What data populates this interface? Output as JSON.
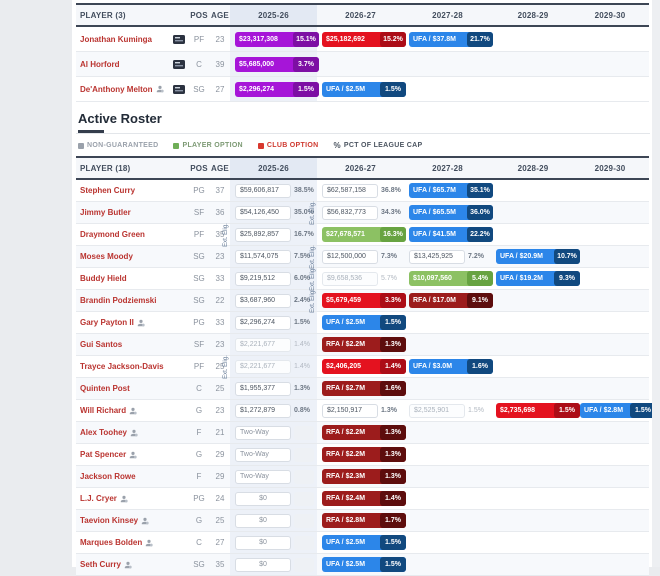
{
  "ext_label": "Ext. Elig.",
  "seasons": [
    "2025-26",
    "2026-27",
    "2027-28",
    "2028-29",
    "2029-30"
  ],
  "pending_table": {
    "player_header": "PLAYER (3)",
    "pos_header": "POS",
    "age_header": "AGE",
    "rows": [
      {
        "name": "Jonathan Kuminga",
        "person_icon": false,
        "contract_icon": true,
        "pos": "PF",
        "age": "23",
        "cells": [
          {
            "type": "purple",
            "value": "$23,317,308",
            "pct": "15.1%"
          },
          {
            "type": "red",
            "value": "$25,182,692",
            "pct": "15.2%"
          },
          {
            "type": "blue",
            "value": "UFA / $37.8M",
            "pct": "21.7%"
          },
          null,
          null
        ]
      },
      {
        "name": "Al Horford",
        "person_icon": false,
        "contract_icon": true,
        "pos": "C",
        "age": "39",
        "cells": [
          {
            "type": "purple",
            "value": "$5,685,000",
            "pct": "3.7%"
          },
          null,
          null,
          null,
          null
        ]
      },
      {
        "name": "De'Anthony Melton",
        "person_icon": true,
        "contract_icon": true,
        "pos": "SG",
        "age": "27",
        "cells": [
          {
            "type": "purple",
            "value": "$2,296,274",
            "pct": "1.5%"
          },
          {
            "type": "blue",
            "value": "UFA / $2.5M",
            "pct": "1.5%"
          },
          null,
          null,
          null
        ]
      }
    ]
  },
  "section": {
    "title": "Active Roster"
  },
  "legend": {
    "items": [
      {
        "label": "NON-GUARANTEED",
        "color": "#9aa1ab",
        "text_color": "#9aa1ab"
      },
      {
        "label": "PLAYER OPTION",
        "color": "#6fae57",
        "text_color": "#7d9a74"
      },
      {
        "label": "CLUB OPTION",
        "color": "#d8382e",
        "text_color": "#cf3a30"
      }
    ],
    "pct_icon": "%",
    "pct_label": "PCT OF LEAGUE CAP",
    "pct_color": "#4c5561"
  },
  "roster_table": {
    "player_header": "PLAYER (18)",
    "pos_header": "POS",
    "age_header": "AGE",
    "rows": [
      {
        "name": "Stephen Curry",
        "person_icon": false,
        "contract_icon": false,
        "pos": "PG",
        "age": "37",
        "cells": [
          {
            "type": "plain",
            "value": "$59,606,817",
            "pct": "38.5%"
          },
          {
            "type": "plain",
            "value": "$62,587,158",
            "pct": "36.8%"
          },
          {
            "type": "blue",
            "value": "UFA / $65.7M",
            "pct": "35.1%"
          },
          null,
          null
        ]
      },
      {
        "name": "Jimmy Butler",
        "person_icon": false,
        "contract_icon": false,
        "pos": "SF",
        "age": "36",
        "cells": [
          {
            "type": "plain",
            "value": "$54,126,450",
            "pct": "35.0%"
          },
          {
            "type": "plain",
            "value": "$56,832,773",
            "pct": "34.3%",
            "ext": true
          },
          {
            "type": "blue",
            "value": "UFA / $65.5M",
            "pct": "36.0%"
          },
          null,
          null
        ]
      },
      {
        "name": "Draymond Green",
        "person_icon": false,
        "contract_icon": false,
        "pos": "PF",
        "age": "35",
        "cells": [
          {
            "type": "plain",
            "value": "$25,892,857",
            "pct": "16.7%",
            "ext": true
          },
          {
            "type": "green",
            "value": "$27,678,571",
            "pct": "16.3%"
          },
          {
            "type": "blue",
            "value": "UFA / $41.5M",
            "pct": "22.2%"
          },
          null,
          null
        ]
      },
      {
        "name": "Moses Moody",
        "person_icon": false,
        "contract_icon": false,
        "pos": "SG",
        "age": "23",
        "cells": [
          {
            "type": "plain",
            "value": "$11,574,075",
            "pct": "7.5%"
          },
          {
            "type": "plain",
            "value": "$12,500,000",
            "pct": "7.3%",
            "ext": true
          },
          {
            "type": "plain",
            "value": "$13,425,925",
            "pct": "7.2%"
          },
          {
            "type": "blue",
            "value": "UFA / $20.9M",
            "pct": "10.7%"
          },
          null
        ]
      },
      {
        "name": "Buddy Hield",
        "person_icon": false,
        "contract_icon": false,
        "pos": "SG",
        "age": "33",
        "cells": [
          {
            "type": "plain",
            "value": "$9,219,512",
            "pct": "6.0%"
          },
          {
            "type": "muted",
            "value": "$9,658,536",
            "pct": "5.7%",
            "ext": true
          },
          {
            "type": "green",
            "value": "$10,097,560",
            "pct": "5.4%"
          },
          {
            "type": "blue",
            "value": "UFA / $19.2M",
            "pct": "9.3%"
          },
          null
        ]
      },
      {
        "name": "Brandin Podziemski",
        "person_icon": false,
        "contract_icon": false,
        "pos": "SG",
        "age": "22",
        "cells": [
          {
            "type": "plain",
            "value": "$3,687,960",
            "pct": "2.4%"
          },
          {
            "type": "red",
            "value": "$5,679,459",
            "pct": "3.3%",
            "ext": true
          },
          {
            "type": "darkred",
            "value": "RFA / $17.0M",
            "pct": "9.1%"
          },
          null,
          null
        ]
      },
      {
        "name": "Gary Payton II",
        "person_icon": true,
        "contract_icon": false,
        "pos": "PG",
        "age": "33",
        "cells": [
          {
            "type": "plain",
            "value": "$2,296,274",
            "pct": "1.5%"
          },
          {
            "type": "blue",
            "value": "UFA / $2.5M",
            "pct": "1.5%"
          },
          null,
          null,
          null
        ]
      },
      {
        "name": "Gui Santos",
        "person_icon": false,
        "contract_icon": false,
        "pos": "SF",
        "age": "23",
        "cells": [
          {
            "type": "muted",
            "value": "$2,221,677",
            "pct": "1.4%"
          },
          {
            "type": "darkred",
            "value": "RFA / $2.2M",
            "pct": "1.3%"
          },
          null,
          null,
          null
        ]
      },
      {
        "name": "Trayce Jackson-Davis",
        "person_icon": false,
        "contract_icon": false,
        "pos": "PF",
        "age": "25",
        "cells": [
          {
            "type": "muted",
            "value": "$2,221,677",
            "pct": "1.4%",
            "ext": true
          },
          {
            "type": "red",
            "value": "$2,406,205",
            "pct": "1.4%"
          },
          {
            "type": "blue",
            "value": "UFA / $3.0M",
            "pct": "1.6%"
          },
          null,
          null
        ]
      },
      {
        "name": "Quinten Post",
        "person_icon": false,
        "contract_icon": false,
        "pos": "C",
        "age": "25",
        "cells": [
          {
            "type": "plain",
            "value": "$1,955,377",
            "pct": "1.3%"
          },
          {
            "type": "darkred",
            "value": "RFA / $2.7M",
            "pct": "1.6%"
          },
          null,
          null,
          null
        ]
      },
      {
        "name": "Will Richard",
        "person_icon": true,
        "contract_icon": false,
        "pos": "G",
        "age": "23",
        "cells": [
          {
            "type": "plain",
            "value": "$1,272,879",
            "pct": "0.8%"
          },
          {
            "type": "plain",
            "value": "$2,150,917",
            "pct": "1.3%"
          },
          {
            "type": "muted",
            "value": "$2,525,901",
            "pct": "1.5%"
          },
          {
            "type": "red",
            "value": "$2,735,698",
            "pct": "1.5%"
          },
          {
            "type": "blue",
            "value": "UFA / $2.8M",
            "pct": "1.5%"
          }
        ]
      },
      {
        "name": "Alex Toohey",
        "person_icon": true,
        "contract_icon": false,
        "pos": "F",
        "age": "21",
        "cells": [
          {
            "type": "twoway",
            "value": "Two-Way",
            "pct": ""
          },
          {
            "type": "darkred",
            "value": "RFA / $2.2M",
            "pct": "1.3%"
          },
          null,
          null,
          null
        ]
      },
      {
        "name": "Pat Spencer",
        "person_icon": true,
        "contract_icon": false,
        "pos": "G",
        "age": "29",
        "cells": [
          {
            "type": "twoway",
            "value": "Two-Way",
            "pct": ""
          },
          {
            "type": "darkred",
            "value": "RFA / $2.2M",
            "pct": "1.3%"
          },
          null,
          null,
          null
        ]
      },
      {
        "name": "Jackson Rowe",
        "person_icon": false,
        "contract_icon": false,
        "pos": "F",
        "age": "29",
        "cells": [
          {
            "type": "twoway",
            "value": "Two-Way",
            "pct": ""
          },
          {
            "type": "darkred",
            "value": "RFA / $2.3M",
            "pct": "1.3%"
          },
          null,
          null,
          null
        ]
      },
      {
        "name": "L.J. Cryer",
        "person_icon": true,
        "contract_icon": false,
        "pos": "PG",
        "age": "24",
        "cells": [
          {
            "type": "zero",
            "value": "$0",
            "pct": ""
          },
          {
            "type": "darkred",
            "value": "RFA / $2.4M",
            "pct": "1.4%"
          },
          null,
          null,
          null
        ]
      },
      {
        "name": "Taevion Kinsey",
        "person_icon": true,
        "contract_icon": false,
        "pos": "G",
        "age": "25",
        "cells": [
          {
            "type": "zero",
            "value": "$0",
            "pct": ""
          },
          {
            "type": "darkred",
            "value": "RFA / $2.8M",
            "pct": "1.7%"
          },
          null,
          null,
          null
        ]
      },
      {
        "name": "Marques Bolden",
        "person_icon": true,
        "contract_icon": false,
        "pos": "C",
        "age": "27",
        "cells": [
          {
            "type": "zero",
            "value": "$0",
            "pct": ""
          },
          {
            "type": "blue",
            "value": "UFA / $2.5M",
            "pct": "1.5%"
          },
          null,
          null,
          null
        ]
      },
      {
        "name": "Seth Curry",
        "person_icon": true,
        "contract_icon": false,
        "pos": "SG",
        "age": "35",
        "cells": [
          {
            "type": "zero",
            "value": "$0",
            "pct": ""
          },
          {
            "type": "blue",
            "value": "UFA / $2.5M",
            "pct": "1.5%"
          },
          null,
          null,
          null
        ]
      }
    ]
  }
}
